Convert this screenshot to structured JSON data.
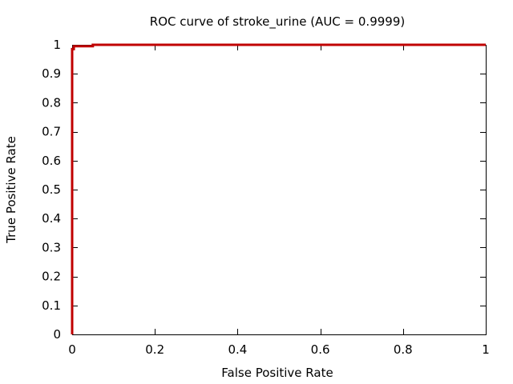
{
  "chart_data": {
    "type": "line",
    "title": "ROC curve of stroke_urine (AUC = 0.9999)",
    "xlabel": "False Positive Rate",
    "ylabel": "True Positive Rate",
    "xlim": [
      0,
      1
    ],
    "ylim": [
      0,
      1
    ],
    "xticks": [
      "0",
      "0.2",
      "0.4",
      "0.6",
      "0.8",
      "1"
    ],
    "yticks": [
      "0",
      "0.1",
      "0.2",
      "0.3",
      "0.4",
      "0.5",
      "0.6",
      "0.7",
      "0.8",
      "0.9",
      "1"
    ],
    "grid": false,
    "legend": "none",
    "series": [
      {
        "color": "#c00000",
        "x": [
          0,
          0,
          0.004,
          0.004,
          0.05,
          0.05,
          1
        ],
        "y": [
          0,
          0.985,
          0.985,
          0.995,
          0.995,
          1,
          1
        ]
      }
    ]
  }
}
